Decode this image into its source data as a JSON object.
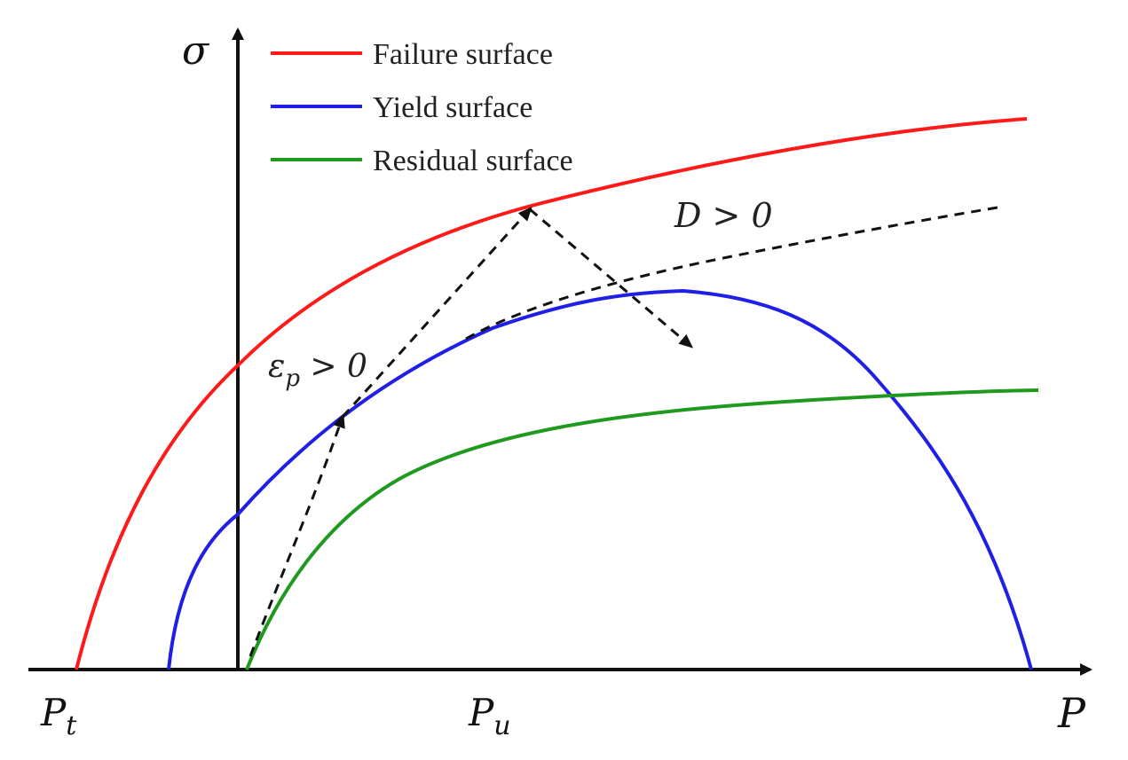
{
  "figure": {
    "axes": {
      "y_label": "σ",
      "x_label": "P",
      "x_ticks": [
        {
          "main": "P",
          "sub": "t"
        },
        {
          "main": "P",
          "sub": "u"
        }
      ]
    },
    "legend": {
      "placement": "top-left",
      "items": [
        {
          "label": "Failure surface",
          "color": "#ff1a1a"
        },
        {
          "label": "Yield surface",
          "color": "#1f1fe6"
        },
        {
          "label": "Residual surface",
          "color": "#1f9a1f"
        }
      ]
    },
    "annotations": {
      "damage": {
        "text": "D > 0"
      },
      "plastic": {
        "main": "ε",
        "sub": "p",
        "rest": " > 0"
      }
    },
    "curves": [
      {
        "name": "failure-surface",
        "color": "#ff1a1a"
      },
      {
        "name": "yield-surface",
        "color": "#1f1fe6"
      },
      {
        "name": "residual-surface",
        "color": "#1f9a1f"
      },
      {
        "name": "damaged-yield-surface",
        "color": "#111111",
        "dashed": true
      }
    ]
  }
}
